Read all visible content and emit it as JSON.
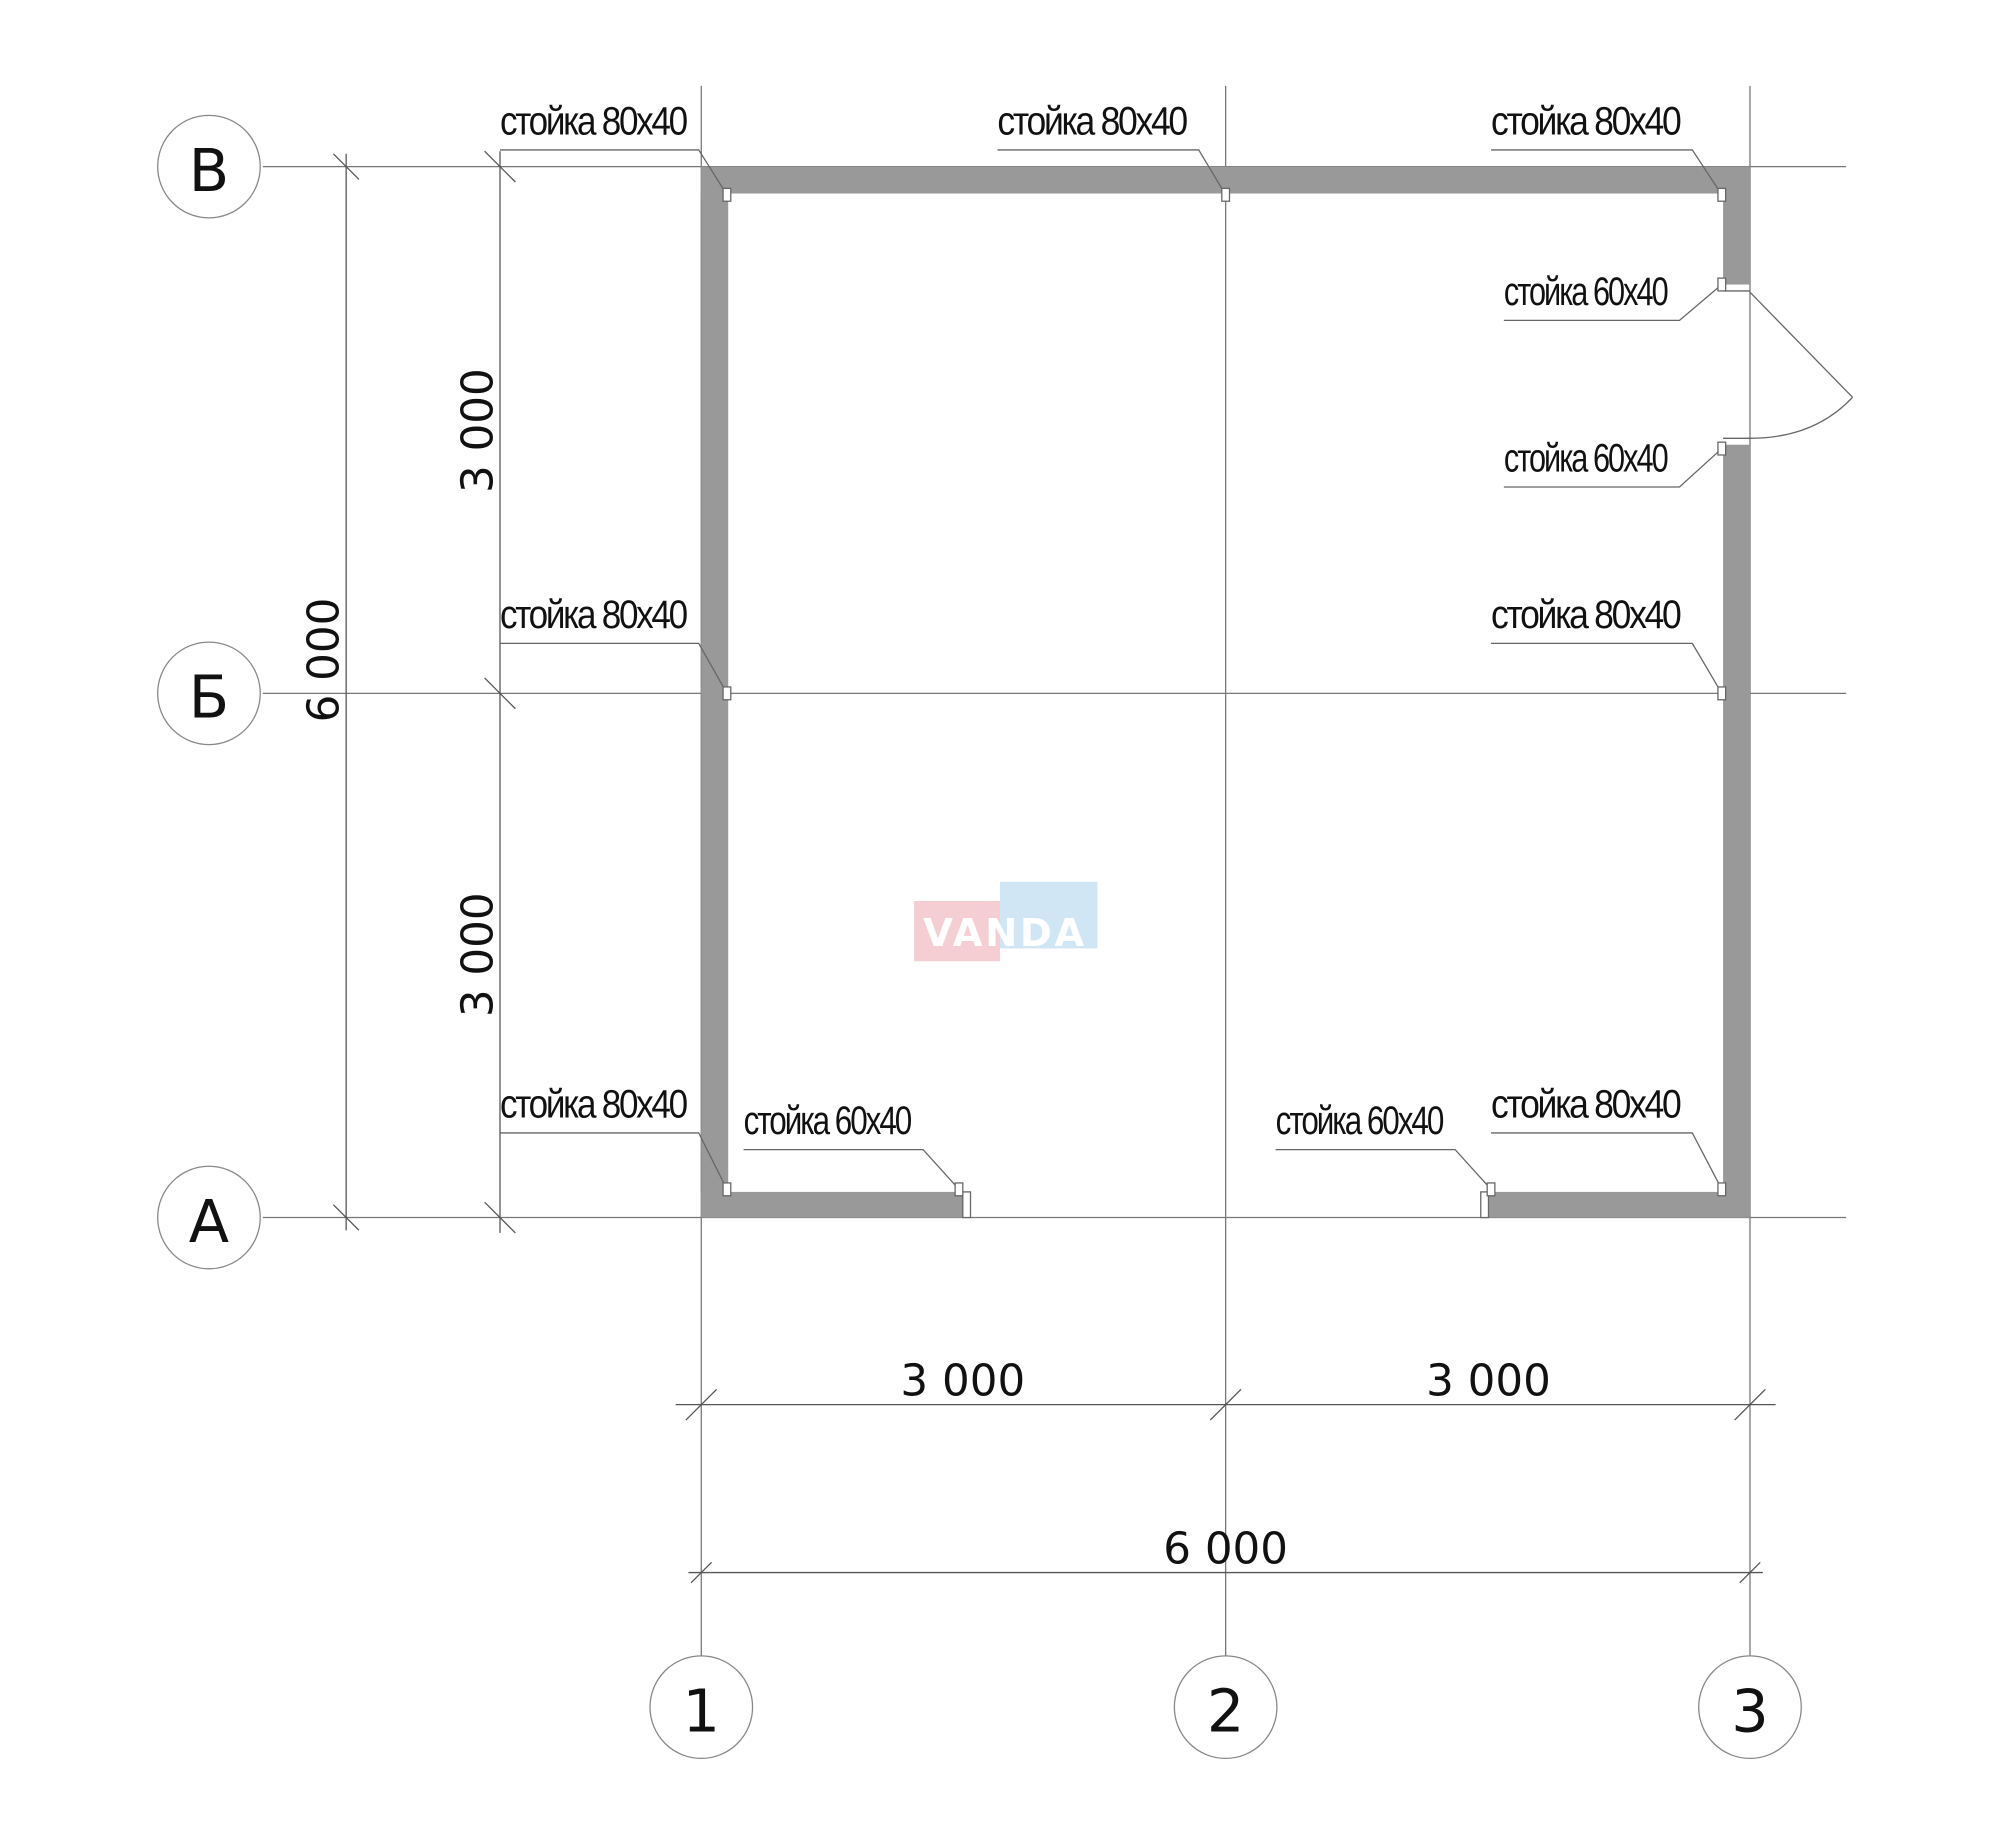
{
  "axes": {
    "rows": [
      "В",
      "Б",
      "А"
    ],
    "columns": [
      "1",
      "2",
      "3"
    ]
  },
  "dimensions": {
    "left_total": "6 000",
    "left_upper": "3 000",
    "left_lower": "3 000",
    "bottom_left": "3 000",
    "bottom_right": "3 000",
    "bottom_total": "6 000"
  },
  "post_labels": [
    "стойка 80x40",
    "стойка 80x40",
    "стойка 80x40",
    "стойка 60x40",
    "стойка 60x40",
    "стойка 80x40",
    "стойка 80x40",
    "стойка 80x40",
    "стойка 60x40",
    "стойка 60x40",
    "стойка 80x40"
  ],
  "watermark": {
    "text": "VANDA",
    "colors": {
      "pink": "#f4c6cc",
      "blue": "#c9e2f3"
    }
  },
  "colors": {
    "wall": "#999999"
  }
}
